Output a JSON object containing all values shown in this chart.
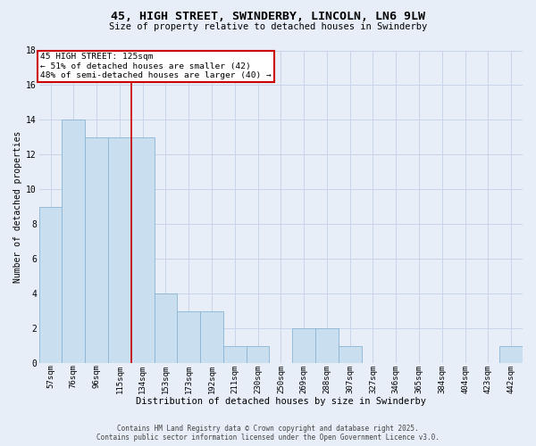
{
  "title_line1": "45, HIGH STREET, SWINDERBY, LINCOLN, LN6 9LW",
  "title_line2": "Size of property relative to detached houses in Swinderby",
  "xlabel": "Distribution of detached houses by size in Swinderby",
  "ylabel": "Number of detached properties",
  "bar_labels": [
    "57sqm",
    "76sqm",
    "96sqm",
    "115sqm",
    "134sqm",
    "153sqm",
    "173sqm",
    "192sqm",
    "211sqm",
    "230sqm",
    "250sqm",
    "269sqm",
    "288sqm",
    "307sqm",
    "327sqm",
    "346sqm",
    "365sqm",
    "384sqm",
    "404sqm",
    "423sqm",
    "442sqm"
  ],
  "bar_values": [
    9,
    14,
    13,
    13,
    13,
    4,
    3,
    3,
    1,
    1,
    0,
    2,
    2,
    1,
    0,
    0,
    0,
    0,
    0,
    0,
    1
  ],
  "bar_color": "#c9dff0",
  "bar_edge_color": "#8ab4d4",
  "annotation_text": "45 HIGH STREET: 125sqm\n← 51% of detached houses are smaller (42)\n48% of semi-detached houses are larger (40) →",
  "annotation_box_color": "#ffffff",
  "annotation_box_edge_color": "#cc0000",
  "red_line_bar_index": 3.5,
  "ylim": [
    0,
    18
  ],
  "yticks": [
    0,
    2,
    4,
    6,
    8,
    10,
    12,
    14,
    16,
    18
  ],
  "grid_color": "#c8d4e8",
  "background_color": "#e8eef8",
  "footer_line1": "Contains HM Land Registry data © Crown copyright and database right 2025.",
  "footer_line2": "Contains public sector information licensed under the Open Government Licence v3.0."
}
